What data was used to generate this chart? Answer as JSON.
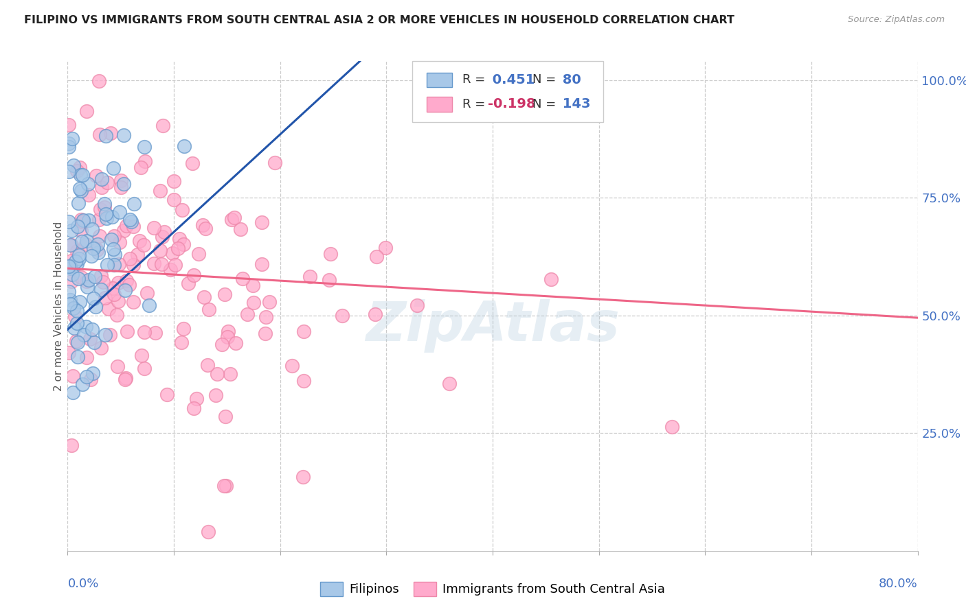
{
  "title": "FILIPINO VS IMMIGRANTS FROM SOUTH CENTRAL ASIA 2 OR MORE VEHICLES IN HOUSEHOLD CORRELATION CHART",
  "source": "Source: ZipAtlas.com",
  "ylabel": "2 or more Vehicles in Household",
  "xmin": 0.0,
  "xmax": 0.8,
  "ymin": 0.0,
  "ymax": 1.04,
  "R_blue": 0.451,
  "N_blue": 80,
  "R_pink": -0.198,
  "N_pink": 143,
  "blue_color": "#a8c8e8",
  "blue_edge": "#6699cc",
  "pink_color": "#ffaacc",
  "pink_edge": "#ee88aa",
  "blue_line_color": "#2255aa",
  "pink_line_color": "#ee6688",
  "legend_label_blue": "Filipinos",
  "legend_label_pink": "Immigrants from South Central Asia",
  "watermark": "ZipAtlas",
  "background_color": "#ffffff",
  "grid_color": "#cccccc",
  "title_color": "#222222",
  "axis_label_color": "#4472c4",
  "legend_R_color_blue": "#4472c4",
  "legend_R_color_pink": "#cc3366",
  "legend_N_color": "#4472c4",
  "seed": 42,
  "blue_line_x0": 0.0,
  "blue_line_y0": 0.47,
  "blue_line_x1": 0.275,
  "blue_line_y1": 1.04,
  "pink_line_x0": 0.0,
  "pink_line_x1": 0.8,
  "pink_line_y0": 0.6,
  "pink_line_y1": 0.495
}
